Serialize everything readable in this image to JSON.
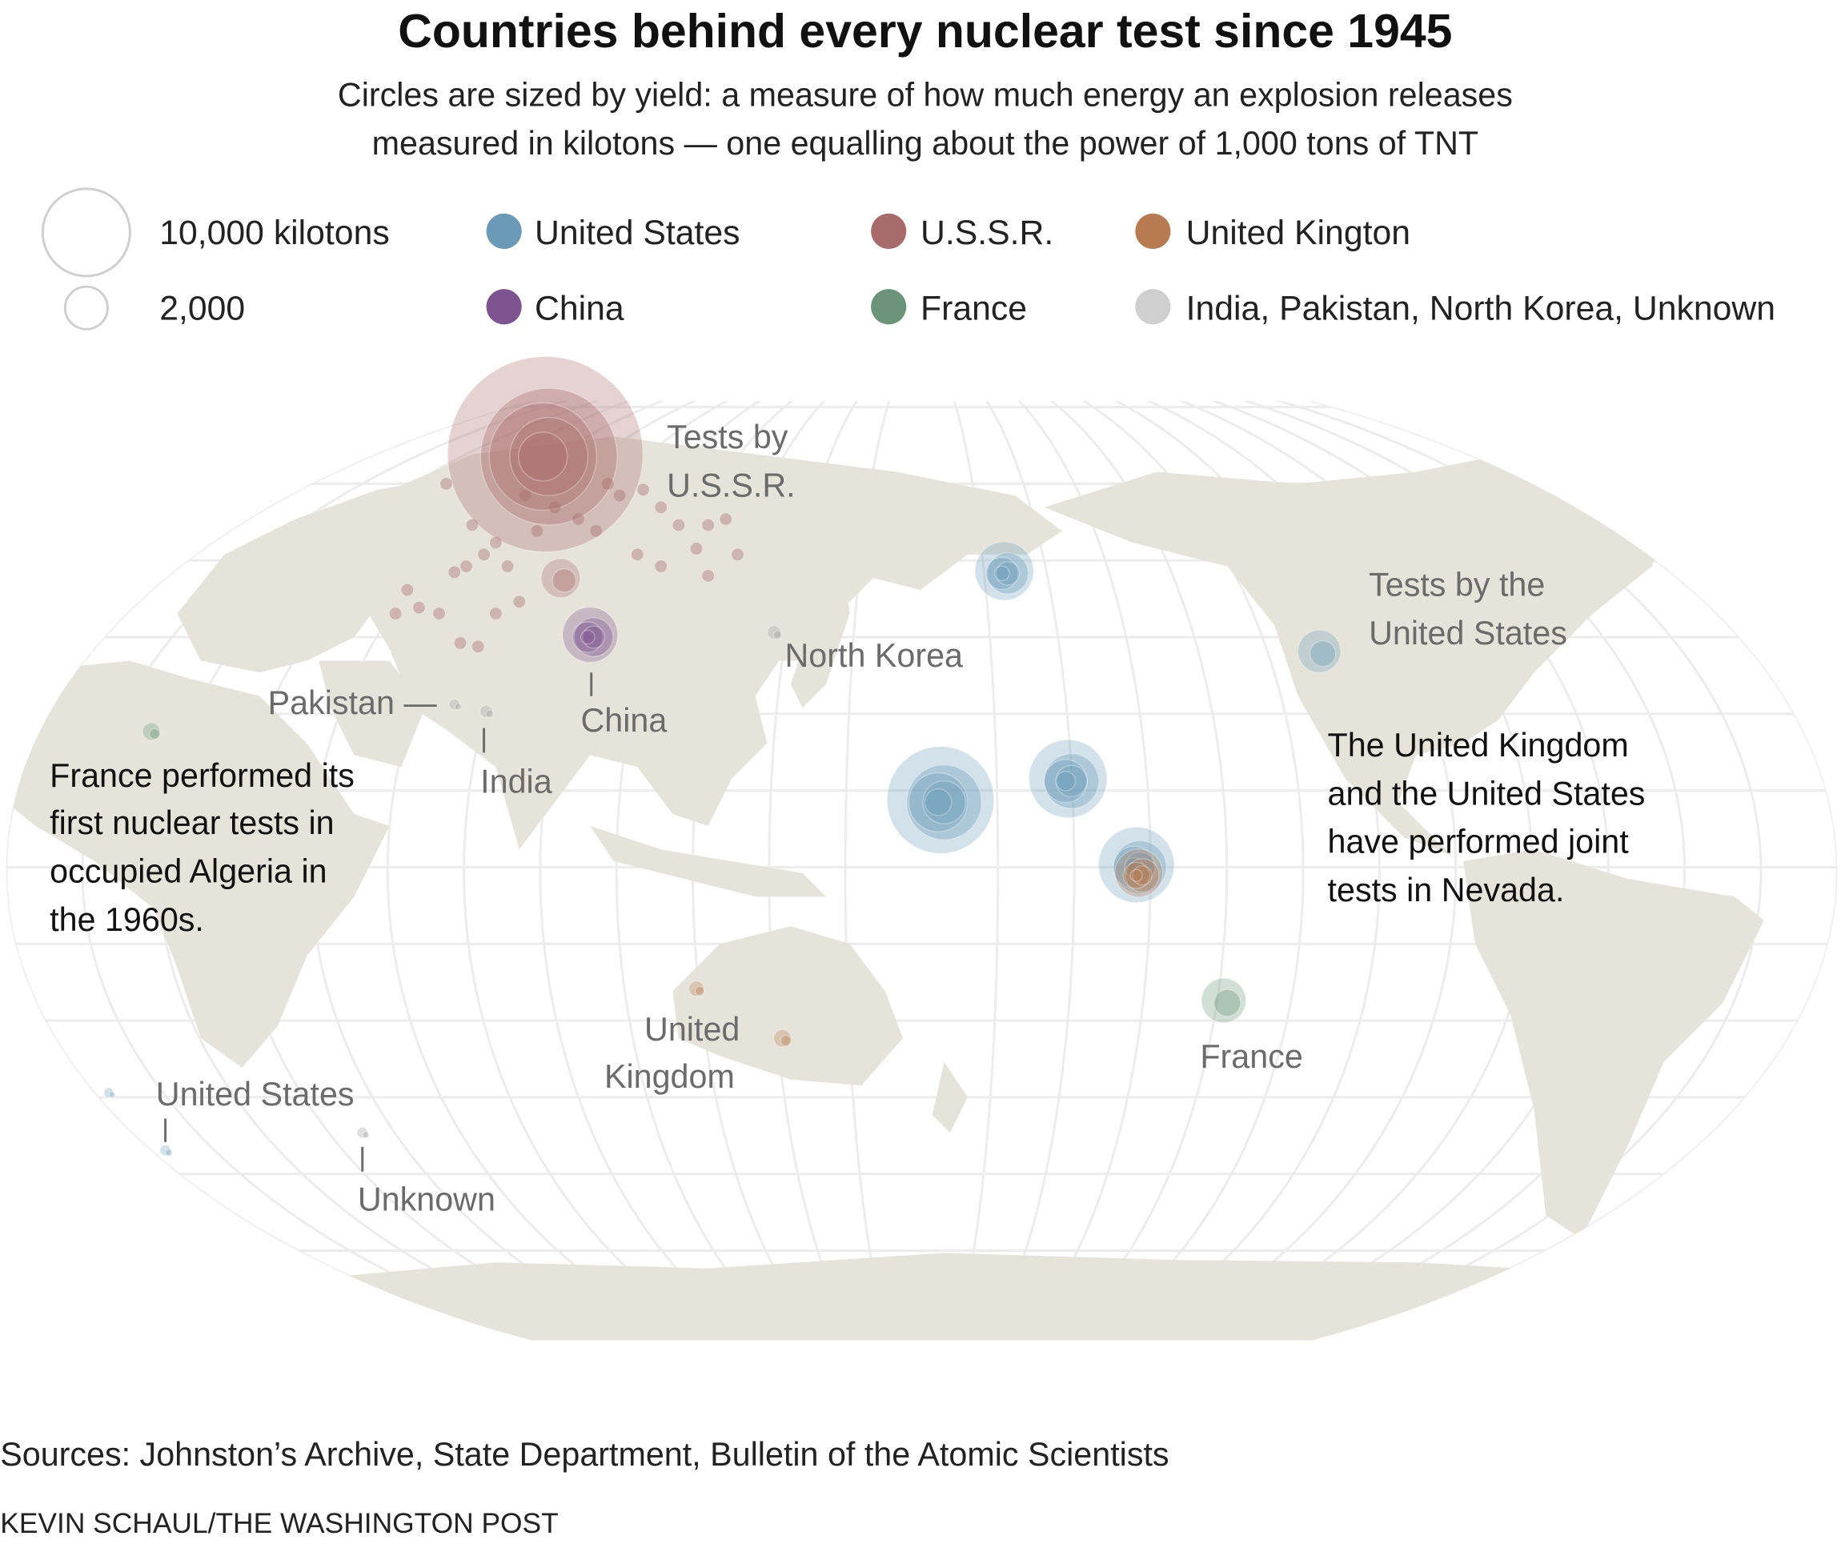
{
  "title": "Countries behind every nuclear test since 1945",
  "subtitle": [
    "Circles are sized by yield: a measure of how much energy an explosion releases",
    "measured in kilotons — one equalling about the power of 1,000 tons of TNT"
  ],
  "size_legend": [
    {
      "label": "10,000 kilotons",
      "kilotons": 10000
    },
    {
      "label": "2,000",
      "kilotons": 2000
    }
  ],
  "color_legend": [
    {
      "label": "United States",
      "color": "#6a9ab8"
    },
    {
      "label": "U.S.S.R.",
      "color": "#a86b6b"
    },
    {
      "label": "United Kington",
      "color": "#b87a50"
    },
    {
      "label": "China",
      "color": "#7e5490"
    },
    {
      "label": "France",
      "color": "#6b9478"
    },
    {
      "label": "India, Pakistan, North Korea, Unknown",
      "color": "#cfcfcf"
    }
  ],
  "map_labels": {
    "ussr": [
      "Tests by",
      "U.S.S.R."
    ],
    "north_korea": "North Korea",
    "pakistan": "Pakistan —",
    "china": "China",
    "india": "India",
    "us": [
      "Tests by the",
      "United States"
    ],
    "france": "France",
    "uk": [
      "United",
      "Kingdom"
    ],
    "us_atlantic": "United States",
    "unknown": "Unknown"
  },
  "annotations": {
    "france": [
      "France performed its",
      "first nuclear tests in",
      "occupied Algeria in",
      "the 1960s."
    ],
    "uk_us": [
      "The United Kingdom",
      "and the United States",
      "have performed joint",
      "tests in Nevada."
    ]
  },
  "clusters": [
    {
      "country": "U.S.S.R.",
      "max_yield_kt": 50000
    },
    {
      "country": "U.S.S.R.",
      "max_yield_kt": 2000
    },
    {
      "country": "China",
      "max_yield_kt": 4000
    },
    {
      "country": "United States",
      "max_yield_kt": 15000
    },
    {
      "country": "United States",
      "max_yield_kt": 8000
    },
    {
      "country": "United States",
      "max_yield_kt": 7500
    },
    {
      "country": "United States",
      "max_yield_kt": 4500
    },
    {
      "country": "United States",
      "max_yield_kt": 2400
    },
    {
      "country": "United Kingdom",
      "max_yield_kt": 3000
    },
    {
      "country": "France",
      "max_yield_kt": 2600
    },
    {
      "country": "United Kingdom",
      "max_yield_kt": 400
    },
    {
      "country": "United Kingdom",
      "max_yield_kt": 300
    },
    {
      "country": "France",
      "max_yield_kt": 400
    },
    {
      "country": "Pakistan",
      "max_yield_kt": 150
    },
    {
      "country": "India",
      "max_yield_kt": 200
    },
    {
      "country": "North Korea",
      "max_yield_kt": 250
    },
    {
      "country": "Unknown",
      "max_yield_kt": 150
    },
    {
      "country": "United States",
      "max_yield_kt": 150
    },
    {
      "country": "United States",
      "max_yield_kt": 100
    }
  ],
  "sources": "Sources: Johnston’s Archive, State Department, Bulletin of the Atomic Scientists",
  "credit": "KEVIN SCHAUL/THE WASHINGTON POST"
}
